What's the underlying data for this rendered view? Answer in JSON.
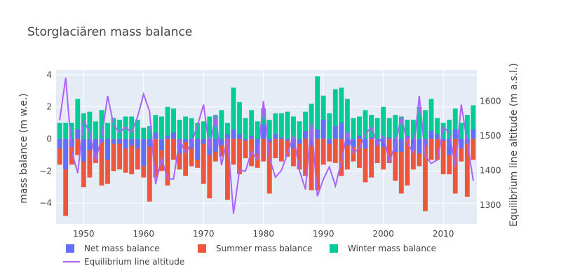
{
  "chart_data": {
    "type": "bar",
    "title": "Storglaciären mass balance",
    "barmode": "overlay",
    "x": [
      1946,
      1947,
      1948,
      1949,
      1950,
      1951,
      1952,
      1953,
      1954,
      1955,
      1956,
      1957,
      1958,
      1959,
      1960,
      1961,
      1962,
      1963,
      1964,
      1965,
      1966,
      1967,
      1968,
      1969,
      1970,
      1971,
      1972,
      1973,
      1974,
      1975,
      1976,
      1977,
      1978,
      1979,
      1980,
      1981,
      1982,
      1983,
      1984,
      1985,
      1986,
      1987,
      1988,
      1989,
      1990,
      1991,
      1992,
      1993,
      1994,
      1995,
      1996,
      1997,
      1998,
      1999,
      2000,
      2001,
      2002,
      2003,
      2004,
      2005,
      2006,
      2007,
      2008,
      2009,
      2010,
      2011,
      2012,
      2013,
      2014,
      2015
    ],
    "xlabel": "",
    "ylabel": "mass balance (m w.e.)",
    "ylim": [
      -5.3,
      4.3
    ],
    "y2label": "Equilibrium line altitude (m a.s.l.)",
    "y2lim": [
      1245,
      1690
    ],
    "xlim": [
      1945.4,
      2015.6
    ],
    "x_ticks": [
      1950,
      1960,
      1970,
      1980,
      1990,
      2000,
      2010
    ],
    "y_ticks": [
      -4,
      -2,
      0,
      2,
      4
    ],
    "y2_ticks": [
      1300,
      1400,
      1500,
      1600
    ],
    "grid": true,
    "legend_position": "bottom",
    "series": [
      {
        "name": "Net mass balance",
        "color": "#636efa",
        "values": [
          -0.6,
          -1.9,
          -0.5,
          0.6,
          -1.4,
          -0.7,
          -0.9,
          -0.2,
          -1.3,
          -0.3,
          -0.3,
          -0.6,
          -0.4,
          -0.6,
          -1.7,
          -0.5,
          0.4,
          -0.7,
          0.2,
          0.4,
          -0.9,
          -0.2,
          -0.6,
          -1.3,
          -0.3,
          -1.0,
          -0.8,
          -0.4,
          0.3,
          0.6,
          0.3,
          -0.1,
          0.2,
          -0.9,
          0.9,
          -0.2,
          0.3,
          0.1,
          -0.1,
          -0.6,
          -0.3,
          0.5,
          -0.4,
          0.6,
          1.2,
          -0.3,
          0.8,
          1.0,
          -0.4,
          -0.5,
          0.2,
          -0.6,
          0.1,
          -0.4,
          -0.5,
          0.1,
          -0.8,
          -0.8,
          0.2,
          -0.7,
          -0.9,
          -0.4,
          0.5,
          0.3,
          -0.1,
          -1.0,
          0.6,
          -0.6,
          -0.3,
          0.6
        ]
      },
      {
        "name": "Summer mass balance",
        "color": "#ef553b",
        "values": [
          -1.6,
          -4.8,
          -1.6,
          -1.0,
          -3.0,
          -2.4,
          -1.5,
          -2.9,
          -2.8,
          -2.0,
          -1.9,
          -2.1,
          -2.2,
          -1.9,
          -2.4,
          -3.9,
          -2.4,
          -2.0,
          -2.9,
          -1.3,
          -1.9,
          -2.3,
          -1.7,
          -1.8,
          -2.8,
          -3.7,
          -1.4,
          -1.1,
          -3.8,
          -1.6,
          -2.2,
          -1.2,
          -1.7,
          -1.8,
          -1.4,
          -3.4,
          -1.2,
          -1.4,
          -1.1,
          -1.7,
          -1.9,
          -2.3,
          -3.2,
          -3.2,
          -1.6,
          -1.4,
          -1.5,
          -2.3,
          -1.9,
          -1.4,
          -1.8,
          -2.7,
          -2.4,
          -1.5,
          -1.9,
          -1.5,
          -2.6,
          -3.4,
          -2.9,
          -1.9,
          -1.7,
          -4.5,
          -1.3,
          -1.3,
          -2.2,
          -2.2,
          -3.4,
          -1.4,
          -3.6,
          -1.3
        ]
      },
      {
        "name": "Winter mass balance",
        "color": "#00cc96",
        "values": [
          1.0,
          1.0,
          1.0,
          2.5,
          1.6,
          1.7,
          1.1,
          1.8,
          1.0,
          1.3,
          1.2,
          1.4,
          1.4,
          1.2,
          0.7,
          0.8,
          1.5,
          1.4,
          2.0,
          1.9,
          1.2,
          1.4,
          1.3,
          1.0,
          1.1,
          1.4,
          1.5,
          1.8,
          1.0,
          3.2,
          2.3,
          1.3,
          1.8,
          1.1,
          1.9,
          1.2,
          1.6,
          1.6,
          1.7,
          1.4,
          1.1,
          1.7,
          2.2,
          3.9,
          2.7,
          1.6,
          3.1,
          3.2,
          2.5,
          1.3,
          1.4,
          1.8,
          1.5,
          1.3,
          2.0,
          1.3,
          1.5,
          1.4,
          1.2,
          1.2,
          2.0,
          1.8,
          2.5,
          1.3,
          1.0,
          1.2,
          1.9,
          1.0,
          1.5,
          2.1
        ]
      },
      {
        "name": "Equilibrium line altitude",
        "color": "#ab63fa",
        "axis": "y2",
        "values": [
          1545,
          1668,
          1455,
          1392,
          1545,
          1510,
          1430,
          1495,
          1615,
          1530,
          1510,
          1525,
          1510,
          1555,
          1620,
          1570,
          1360,
          1435,
          1375,
          1375,
          1490,
          1450,
          1480,
          1530,
          1590,
          1460,
          1560,
          1415,
          1495,
          1275,
          1400,
          1398,
          1455,
          1430,
          1600,
          1435,
          1380,
          1400,
          1448,
          1500,
          1400,
          1345,
          1540,
          1325,
          1375,
          1410,
          1355,
          1425,
          1512,
          1450,
          1465,
          1505,
          1525,
          1475,
          1500,
          1425,
          1475,
          1555,
          1480,
          1450,
          1615,
          1440,
          1420,
          1430,
          1525,
          1510,
          1410,
          1590,
          1480,
          1370
        ]
      }
    ]
  }
}
